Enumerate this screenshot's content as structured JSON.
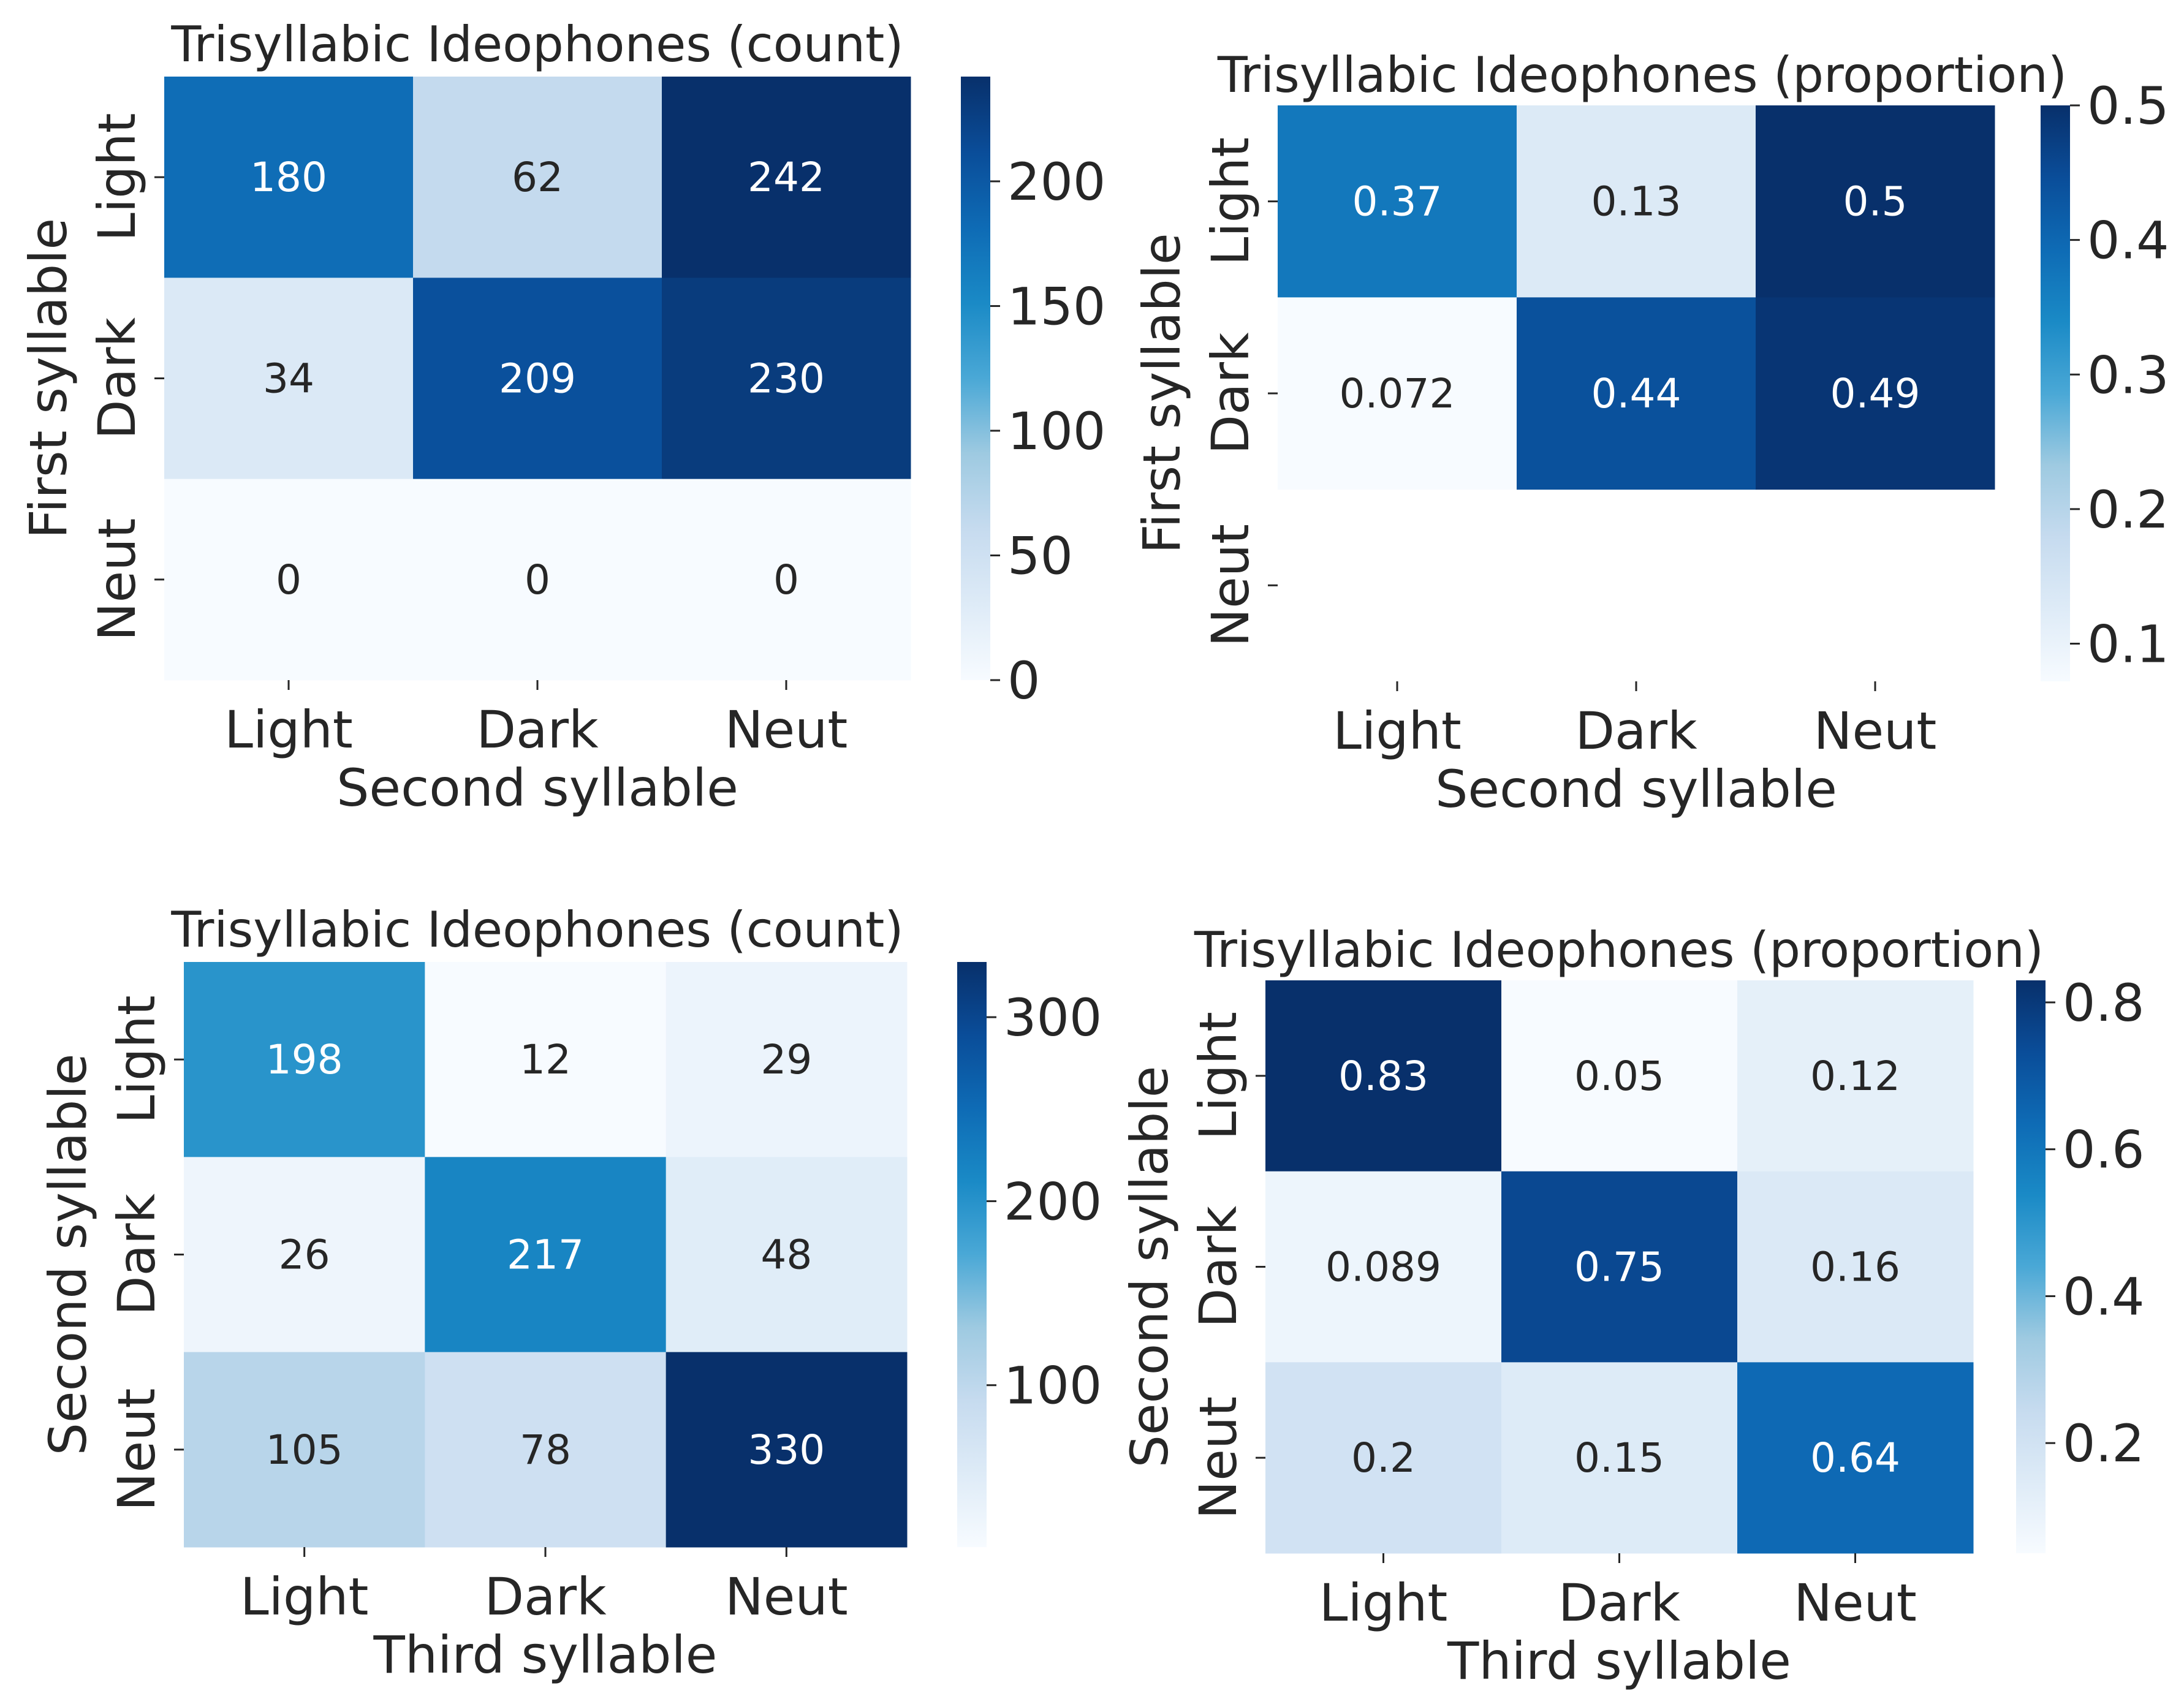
{
  "chart_data": [
    {
      "type": "heatmap",
      "title": "Trisyllabic Ideophones (count)",
      "xlabel": "Second syllable",
      "ylabel": "First syllable",
      "x_categories": [
        "Light",
        "Dark",
        "Neut"
      ],
      "y_categories": [
        "Light",
        "Dark",
        "Neut"
      ],
      "values": [
        [
          180,
          62,
          242
        ],
        [
          34,
          209,
          230
        ],
        [
          0,
          0,
          0
        ]
      ],
      "cell_labels": [
        [
          "180",
          "62",
          "242"
        ],
        [
          "34",
          "209",
          "230"
        ],
        [
          "0",
          "0",
          "0"
        ]
      ],
      "colormap": "Blues",
      "vmin": 0,
      "vmax": 242,
      "colorbar_ticks": [
        0,
        50,
        100,
        150,
        200
      ],
      "colorbar_tick_labels": [
        "0",
        "50",
        "100",
        "150",
        "200"
      ]
    },
    {
      "type": "heatmap",
      "title": "Trisyllabic Ideophones (proportion)",
      "xlabel": "Second syllable",
      "ylabel": "First syllable",
      "x_categories": [
        "Light",
        "Dark",
        "Neut"
      ],
      "y_categories": [
        "Light",
        "Dark",
        "Neut"
      ],
      "values": [
        [
          0.37,
          0.13,
          0.5
        ],
        [
          0.072,
          0.44,
          0.49
        ],
        [
          null,
          null,
          null
        ]
      ],
      "cell_labels": [
        [
          "0.37",
          "0.13",
          "0.5"
        ],
        [
          "0.072",
          "0.44",
          "0.49"
        ],
        [
          "",
          "",
          ""
        ]
      ],
      "colormap": "Blues",
      "vmin": 0.072,
      "vmax": 0.5,
      "colorbar_ticks": [
        0.1,
        0.2,
        0.3,
        0.4,
        0.5
      ],
      "colorbar_tick_labels": [
        "0.1",
        "0.2",
        "0.3",
        "0.4",
        "0.5"
      ]
    },
    {
      "type": "heatmap",
      "title": "Trisyllabic Ideophones (count)",
      "xlabel": "Third syllable",
      "ylabel": "Second syllable",
      "x_categories": [
        "Light",
        "Dark",
        "Neut"
      ],
      "y_categories": [
        "Light",
        "Dark",
        "Neut"
      ],
      "values": [
        [
          198,
          12,
          29
        ],
        [
          26,
          217,
          48
        ],
        [
          105,
          78,
          330
        ]
      ],
      "cell_labels": [
        [
          "198",
          "12",
          "29"
        ],
        [
          "26",
          "217",
          "48"
        ],
        [
          "105",
          "78",
          "330"
        ]
      ],
      "colormap": "Blues",
      "vmin": 12,
      "vmax": 330,
      "colorbar_ticks": [
        100,
        200,
        300
      ],
      "colorbar_tick_labels": [
        "100",
        "200",
        "300"
      ]
    },
    {
      "type": "heatmap",
      "title": "Trisyllabic Ideophones (proportion)",
      "xlabel": "Third syllable",
      "ylabel": "Second syllable",
      "x_categories": [
        "Light",
        "Dark",
        "Neut"
      ],
      "y_categories": [
        "Light",
        "Dark",
        "Neut"
      ],
      "values": [
        [
          0.83,
          0.05,
          0.12
        ],
        [
          0.089,
          0.75,
          0.16
        ],
        [
          0.2,
          0.15,
          0.64
        ]
      ],
      "cell_labels": [
        [
          "0.83",
          "0.05",
          "0.12"
        ],
        [
          "0.089",
          "0.75",
          "0.16"
        ],
        [
          "0.2",
          "0.15",
          "0.64"
        ]
      ],
      "colormap": "Blues",
      "vmin": 0.05,
      "vmax": 0.83,
      "colorbar_ticks": [
        0.2,
        0.4,
        0.6,
        0.8
      ],
      "colorbar_tick_labels": [
        "0.2",
        "0.4",
        "0.6",
        "0.8"
      ]
    }
  ]
}
